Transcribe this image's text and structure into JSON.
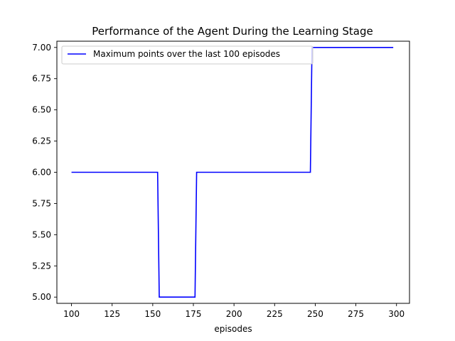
{
  "chart_data": {
    "type": "line",
    "title": "Performance of the Agent During the Learning Stage",
    "xlabel": "episodes",
    "ylabel": "",
    "xlim": [
      91,
      308
    ],
    "ylim": [
      4.95,
      7.05
    ],
    "xticks": [
      100,
      125,
      150,
      175,
      200,
      225,
      250,
      275,
      300
    ],
    "yticks": [
      5.0,
      5.25,
      5.5,
      5.75,
      6.0,
      6.25,
      6.5,
      6.75,
      7.0
    ],
    "xtick_labels": [
      "100",
      "125",
      "150",
      "175",
      "200",
      "225",
      "250",
      "275",
      "300"
    ],
    "ytick_labels": [
      "5.00",
      "5.25",
      "5.50",
      "5.75",
      "6.00",
      "6.25",
      "6.50",
      "6.75",
      "7.00"
    ],
    "grid": false,
    "legend_position": "top-left",
    "series": [
      {
        "name": "Maximum points over the last 100 episodes",
        "color": "#0000ff",
        "x": [
          100,
          153,
          154,
          176,
          177,
          247,
          248,
          298
        ],
        "y": [
          6,
          6,
          5,
          5,
          6,
          6,
          7,
          7
        ]
      }
    ]
  }
}
